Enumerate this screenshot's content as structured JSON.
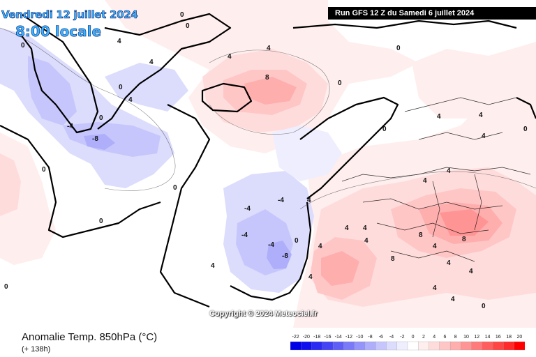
{
  "header": {
    "valid_date": "Vendredi 12 juillet 2024",
    "local_time": "8:00 locale",
    "run_label": "Run GFS 12 Z du Samedi 6 juillet 2024"
  },
  "copyright": "Copyright © 2024 Meteociel.fr",
  "footer": {
    "title": "Anomalie Temp. 850hPa (°C)",
    "lead": "(+ 138h)"
  },
  "scale": {
    "labels": [
      "-22",
      "-20",
      "-18",
      "-16",
      "-14",
      "-12",
      "-10",
      "-8",
      "-6",
      "-4",
      "-2",
      "0",
      "2",
      "4",
      "6",
      "8",
      "10",
      "12",
      "14",
      "16",
      "18",
      "20"
    ],
    "colors": [
      "#0000e6",
      "#1010ee",
      "#2a2af2",
      "#4444f4",
      "#5e5ef6",
      "#7a7af8",
      "#9494fa",
      "#aeaefb",
      "#c6c6fc",
      "#dcdcfd",
      "#eeeefe",
      "#ffffff",
      "#ffeeee",
      "#ffdcdc",
      "#ffc6c6",
      "#ffaeae",
      "#ff9494",
      "#ff7a7a",
      "#ff5e5e",
      "#ff4444",
      "#ff2a2a",
      "#ff0000"
    ]
  },
  "map": {
    "colors": {
      "ocean_neutral": "#ffffff",
      "cold_1": "#dcdcfd",
      "cold_2": "#c6c6fc",
      "cold_3": "#aeaefb",
      "warm_1": "#ffeeee",
      "warm_2": "#ffdcdc",
      "warm_3": "#ffc6c6",
      "warm_4": "#ffaeae",
      "warm_5": "#ff9494",
      "coast": "#000000"
    },
    "contour_labels": [
      "0",
      "0",
      "4",
      "4",
      "4",
      "4",
      "-8",
      "-4",
      "0",
      "8",
      "8",
      "4",
      "4",
      "4",
      "0",
      "0",
      "0",
      "0",
      "-4",
      "-4",
      "-4",
      "-4",
      "-8",
      "0",
      "0",
      "4",
      "4",
      "4",
      "4",
      "4",
      "4",
      "4",
      "4",
      "8",
      "8",
      "0",
      "4",
      "4",
      "0",
      "0",
      "0",
      "4",
      "4",
      "0",
      "0",
      "4",
      "4",
      "4"
    ]
  }
}
